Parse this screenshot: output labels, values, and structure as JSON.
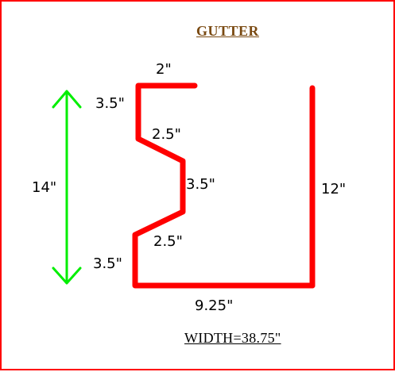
{
  "title": "GUTTER",
  "total_width": "WIDTH=38.75\"",
  "dimensions": {
    "top_flange": "2\"",
    "upper_vertical": "3.5\"",
    "upper_diagonal": "2.5\"",
    "middle_vertical": "3.5\"",
    "lower_diagonal": "2.5\"",
    "lower_vertical": "3.5\"",
    "bottom": "9.25\"",
    "back_height": "12\"",
    "overall_height": "14\""
  },
  "colors": {
    "profile": "#ff0000",
    "arrow": "#00ee00",
    "title": "#7a4a12",
    "border": "#ff0000"
  }
}
